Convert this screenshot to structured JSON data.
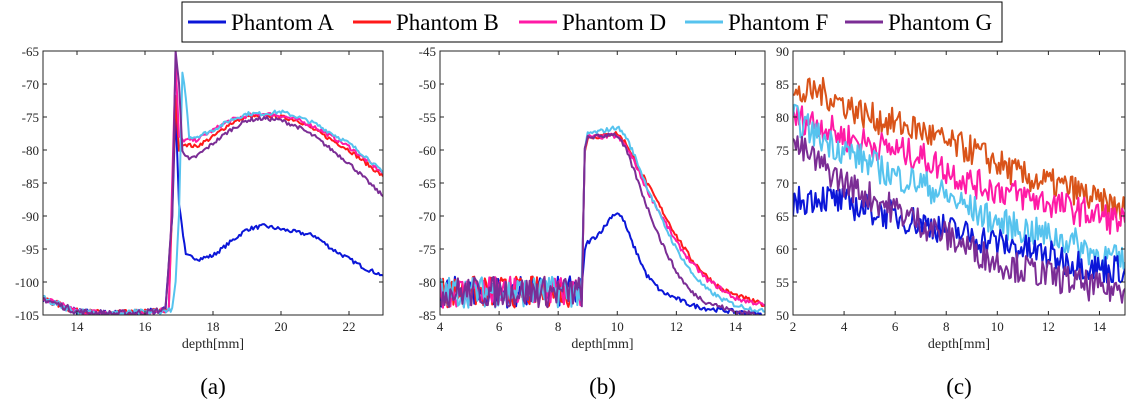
{
  "legend": {
    "entries": [
      {
        "name": "Phantom A",
        "color": "#0b16d8"
      },
      {
        "name": "Phantom B",
        "color": "#ff1a1a"
      },
      {
        "name": "Phantom D",
        "color": "#ff1aa6"
      },
      {
        "name": "Phantom F",
        "color": "#56c3ee"
      },
      {
        "name": "Phantom G",
        "color": "#7b2d95"
      }
    ]
  },
  "chart_data": [
    {
      "type": "line",
      "caption": "(a)",
      "xlabel": "depth[mm]",
      "ylabel": "",
      "xlim": [
        13,
        23
      ],
      "ylim": [
        -105,
        -65
      ],
      "xticks": [
        14,
        16,
        18,
        20,
        22
      ],
      "yticks": [
        -105,
        -100,
        -95,
        -90,
        -85,
        -80,
        -75,
        -70,
        -65
      ],
      "series": [
        {
          "name": "Phantom A",
          "x": [
            13,
            13.5,
            14,
            15,
            16,
            16.6,
            16.8,
            16.9,
            17.0,
            17.2,
            17.6,
            18,
            18.5,
            19,
            19.5,
            20,
            20.5,
            21,
            21.5,
            22,
            22.5,
            23
          ],
          "y": [
            -102.5,
            -103.5,
            -104.5,
            -104.8,
            -104.6,
            -104.2,
            -90,
            -74,
            -88,
            -96,
            -96.5,
            -96,
            -94,
            -92,
            -91.5,
            -92,
            -92.5,
            -93,
            -95,
            -96.5,
            -98,
            -99
          ]
        },
        {
          "name": "Phantom B",
          "x": [
            13,
            13.5,
            14,
            15,
            16,
            16.7,
            16.8,
            16.9,
            17.0,
            17.1,
            17.5,
            18,
            18.5,
            19,
            19.5,
            20,
            20.5,
            21,
            21.5,
            22,
            22.5,
            23
          ],
          "y": [
            -102.5,
            -103.5,
            -104.5,
            -104.8,
            -104.6,
            -104.2,
            -88,
            -72,
            -80,
            -79,
            -79.5,
            -78,
            -76,
            -75,
            -74.8,
            -75,
            -75.5,
            -77,
            -78.5,
            -80,
            -82,
            -84
          ]
        },
        {
          "name": "Phantom D",
          "x": [
            13,
            13.5,
            14,
            15,
            16,
            16.7,
            16.8,
            16.9,
            17.0,
            17.1,
            17.5,
            18,
            18.5,
            19,
            19.5,
            20,
            20.5,
            21,
            21.5,
            22,
            22.5,
            23
          ],
          "y": [
            -102.5,
            -103.5,
            -104.5,
            -104.8,
            -104.6,
            -104.2,
            -85,
            -67,
            -78,
            -78.5,
            -78.5,
            -77,
            -75.5,
            -74.8,
            -74.5,
            -74.8,
            -75.5,
            -76.5,
            -78,
            -79.5,
            -81.5,
            -83.5
          ]
        },
        {
          "name": "Phantom F",
          "x": [
            13,
            13.5,
            14,
            15,
            16,
            16.8,
            16.9,
            17.0,
            17.1,
            17.2,
            17.3,
            17.5,
            18,
            18.5,
            19,
            19.5,
            20,
            20.5,
            21,
            21.5,
            22,
            22.5,
            23
          ],
          "y": [
            -102.5,
            -103.5,
            -104.5,
            -104.8,
            -104.6,
            -104.2,
            -100,
            -90,
            -68,
            -72,
            -78,
            -78,
            -77,
            -75.5,
            -74.5,
            -74.5,
            -74.2,
            -75,
            -76,
            -77.5,
            -79,
            -81,
            -83.5
          ]
        },
        {
          "name": "Phantom G",
          "x": [
            13,
            13.5,
            14,
            15,
            16,
            16.6,
            16.8,
            16.9,
            17.0,
            17.1,
            17.3,
            17.5,
            18,
            18.5,
            19,
            19.5,
            20,
            20.5,
            21,
            21.5,
            22,
            22.5,
            23
          ],
          "y": [
            -102.5,
            -103.5,
            -104.5,
            -104.8,
            -104.6,
            -104.2,
            -90,
            -65,
            -70,
            -80,
            -81.5,
            -81,
            -79,
            -77,
            -75.5,
            -75.2,
            -75.5,
            -76.5,
            -78,
            -80,
            -82,
            -84.5,
            -87
          ]
        }
      ]
    },
    {
      "type": "line",
      "caption": "(b)",
      "xlabel": "depth[mm]",
      "ylabel": "",
      "xlim": [
        4,
        15
      ],
      "ylim": [
        -85,
        -45
      ],
      "xticks": [
        4,
        6,
        8,
        10,
        12,
        14
      ],
      "yticks": [
        -85,
        -80,
        -75,
        -70,
        -65,
        -60,
        -55,
        -50,
        -45
      ],
      "series": [
        {
          "name": "Phantom A",
          "x": [
            4,
            8.8,
            8.9,
            9.0,
            9.3,
            9.6,
            9.8,
            10.0,
            10.2,
            10.5,
            11,
            11.5,
            12,
            12.5,
            13,
            14,
            15
          ],
          "y": [
            -81.5,
            -81.5,
            -75,
            -74,
            -73,
            -71.5,
            -70,
            -69.5,
            -70.5,
            -74,
            -79,
            -81.5,
            -82.5,
            -83.5,
            -84,
            -84.5,
            -85
          ]
        },
        {
          "name": "Phantom B",
          "x": [
            4,
            8.8,
            8.9,
            9.0,
            9.3,
            9.6,
            9.8,
            10.0,
            10.3,
            10.6,
            11,
            11.5,
            12,
            12.5,
            13,
            13.5,
            14,
            15
          ],
          "y": [
            -81.5,
            -81.5,
            -60,
            -58,
            -58,
            -57.8,
            -57.5,
            -57.5,
            -59,
            -61.5,
            -65,
            -69,
            -73,
            -76.5,
            -79,
            -81,
            -82,
            -83.5
          ]
        },
        {
          "name": "Phantom D",
          "x": [
            4,
            8.8,
            8.9,
            9.0,
            9.3,
            9.6,
            9.8,
            10.0,
            10.3,
            10.6,
            11,
            11.5,
            12,
            12.5,
            13,
            13.5,
            14,
            15
          ],
          "y": [
            -81.5,
            -81.5,
            -60,
            -58,
            -58,
            -58,
            -57.8,
            -58,
            -59.5,
            -62,
            -66,
            -70,
            -74,
            -77,
            -79.5,
            -81,
            -82.5,
            -83.5
          ]
        },
        {
          "name": "Phantom F",
          "x": [
            4,
            8.8,
            8.9,
            9.0,
            9.3,
            9.6,
            9.8,
            10.0,
            10.3,
            10.6,
            11,
            11.5,
            12,
            12.5,
            13,
            13.5,
            14,
            15
          ],
          "y": [
            -81.5,
            -81.5,
            -60,
            -57.5,
            -57.3,
            -57,
            -56.8,
            -56.5,
            -58,
            -61,
            -65.5,
            -70.5,
            -75,
            -78.5,
            -81,
            -82.5,
            -83.5,
            -84.5
          ]
        },
        {
          "name": "Phantom G",
          "x": [
            4,
            8.8,
            8.9,
            9.0,
            9.3,
            9.6,
            9.8,
            10.0,
            10.3,
            10.6,
            11,
            11.5,
            12,
            12.5,
            13,
            14,
            15
          ],
          "y": [
            -81.5,
            -81.5,
            -60,
            -58,
            -58,
            -57.8,
            -57.5,
            -57.8,
            -60,
            -63.5,
            -68.5,
            -74,
            -78.5,
            -81.5,
            -83,
            -84.5,
            -85
          ]
        }
      ]
    },
    {
      "type": "line",
      "caption": "(c)",
      "xlabel": "depth[mm]",
      "ylabel": "",
      "xlim": [
        2,
        15
      ],
      "ylim": [
        50,
        90
      ],
      "xticks": [
        2,
        4,
        6,
        8,
        10,
        12,
        14
      ],
      "yticks": [
        50,
        55,
        60,
        65,
        70,
        75,
        80,
        85,
        90
      ],
      "series": [
        {
          "name": "",
          "color": "#d95319",
          "x": [
            2,
            3,
            4,
            5,
            6,
            7,
            8,
            9,
            10,
            11,
            12,
            13,
            14,
            15
          ],
          "y": [
            83,
            84,
            82,
            80,
            79,
            78,
            76,
            75,
            73,
            71,
            70,
            69,
            67,
            66
          ]
        },
        {
          "name": "",
          "color": "#ff1aa6",
          "x": [
            2,
            3,
            4,
            5,
            6,
            7,
            8,
            9,
            10,
            11,
            12,
            13,
            14,
            15
          ],
          "y": [
            80,
            79,
            77,
            76,
            75,
            74,
            72,
            70,
            69,
            68,
            67,
            66,
            65,
            64
          ]
        },
        {
          "name": "",
          "color": "#56c3ee",
          "x": [
            2,
            3,
            4,
            5,
            6,
            7,
            8,
            9,
            10,
            11,
            12,
            13,
            14,
            15
          ],
          "y": [
            80,
            77,
            75,
            73,
            71,
            70,
            68,
            66,
            64,
            63,
            62,
            61,
            59,
            58
          ]
        },
        {
          "name": "",
          "color": "#0b16d8",
          "x": [
            2,
            3,
            4,
            5,
            6,
            7,
            8,
            9,
            10,
            11,
            12,
            13,
            14,
            15
          ],
          "y": [
            67,
            68,
            67,
            66,
            65,
            64,
            63,
            62,
            61,
            60,
            59,
            58,
            57,
            57
          ]
        },
        {
          "name": "",
          "color": "#7b2d95",
          "x": [
            2,
            3,
            4,
            5,
            6,
            7,
            8,
            9,
            10,
            11,
            12,
            13,
            14,
            15
          ],
          "y": [
            76,
            73,
            70,
            68,
            66,
            64,
            62,
            60,
            58,
            57,
            56,
            55,
            54,
            54
          ]
        }
      ]
    }
  ]
}
